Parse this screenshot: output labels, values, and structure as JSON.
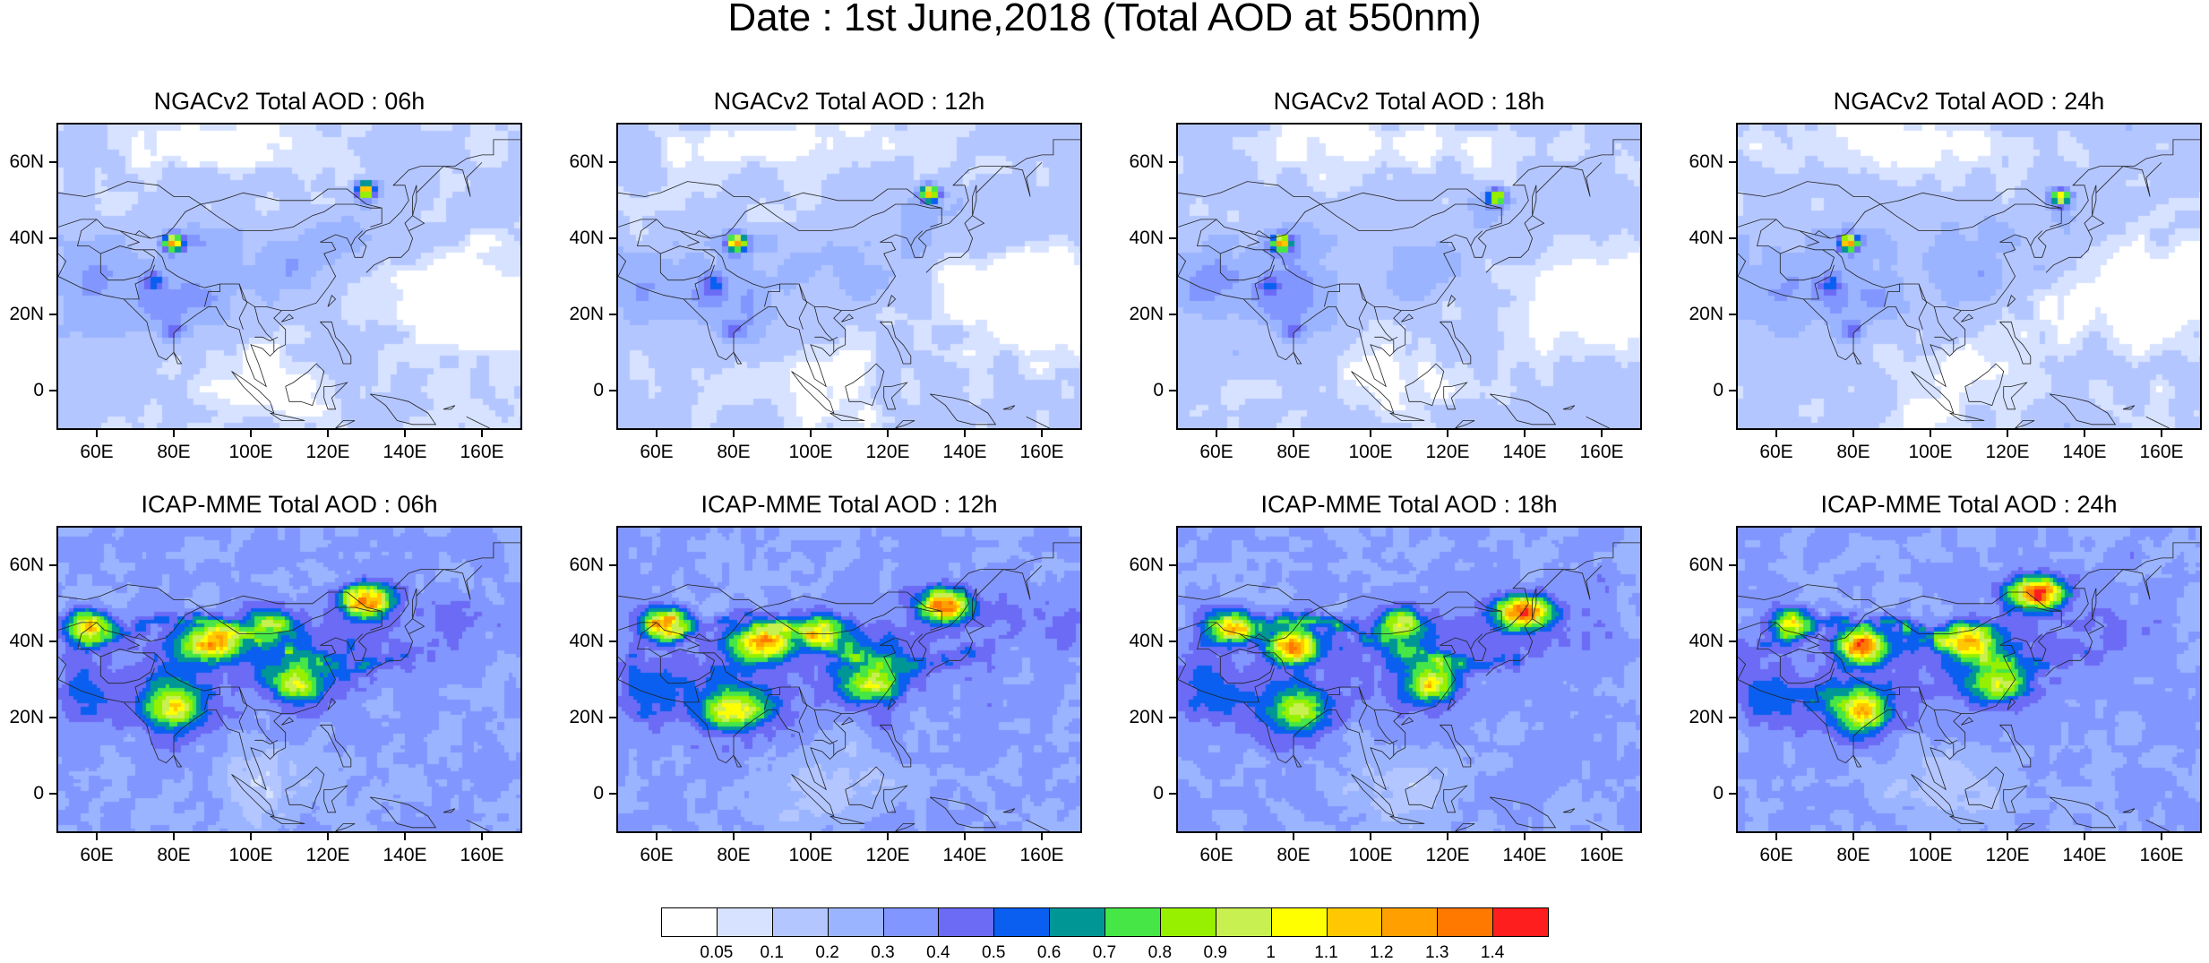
{
  "title": "Date : 1st June,2018 (Total AOD at 550nm)",
  "chart_data": [
    {
      "type": "heatmap",
      "title": "NGACv2 Total AOD : 06h",
      "model": "NGACv2",
      "hour": "06h",
      "xlabel": "",
      "ylabel": "",
      "x_ticks": [
        "60E",
        "80E",
        "100E",
        "120E",
        "140E",
        "160E"
      ],
      "y_ticks": [
        "60N",
        "40N",
        "20N",
        "0"
      ],
      "xlim": [
        50,
        170
      ],
      "ylim": [
        -10,
        70
      ],
      "hotspots": [
        {
          "lon": 80,
          "lat": 39,
          "aod": 1.3
        },
        {
          "lon": 130,
          "lat": 53,
          "aod": 1.3
        },
        {
          "lon": 75,
          "lat": 29,
          "aod": 0.6
        },
        {
          "lon": 80,
          "lat": 16,
          "aod": 0.5
        }
      ]
    },
    {
      "type": "heatmap",
      "title": "NGACv2 Total AOD : 12h",
      "model": "NGACv2",
      "hour": "12h",
      "xlabel": "",
      "ylabel": "",
      "x_ticks": [
        "60E",
        "80E",
        "100E",
        "120E",
        "140E",
        "160E"
      ],
      "y_ticks": [
        "60N",
        "40N",
        "20N",
        "0"
      ],
      "xlim": [
        50,
        170
      ],
      "ylim": [
        -10,
        70
      ],
      "hotspots": [
        {
          "lon": 81,
          "lat": 39,
          "aod": 1.3
        },
        {
          "lon": 131,
          "lat": 52,
          "aod": 1.2
        },
        {
          "lon": 75,
          "lat": 28,
          "aod": 0.6
        },
        {
          "lon": 80,
          "lat": 16,
          "aod": 0.5
        }
      ]
    },
    {
      "type": "heatmap",
      "title": "NGACv2 Total AOD : 18h",
      "model": "NGACv2",
      "hour": "18h",
      "xlabel": "",
      "ylabel": "",
      "x_ticks": [
        "60E",
        "80E",
        "100E",
        "120E",
        "140E",
        "160E"
      ],
      "y_ticks": [
        "60N",
        "40N",
        "20N",
        "0"
      ],
      "xlim": [
        50,
        170
      ],
      "ylim": [
        -10,
        70
      ],
      "hotspots": [
        {
          "lon": 77,
          "lat": 39,
          "aod": 1.3
        },
        {
          "lon": 133,
          "lat": 51,
          "aod": 1.0
        },
        {
          "lon": 74,
          "lat": 28,
          "aod": 0.6
        },
        {
          "lon": 80,
          "lat": 16,
          "aod": 0.5
        }
      ]
    },
    {
      "type": "heatmap",
      "title": "NGACv2 Total AOD : 24h",
      "model": "NGACv2",
      "hour": "24h",
      "xlabel": "",
      "ylabel": "",
      "x_ticks": [
        "60E",
        "80E",
        "100E",
        "120E",
        "140E",
        "160E"
      ],
      "y_ticks": [
        "60N",
        "40N",
        "20N",
        "0"
      ],
      "xlim": [
        50,
        170
      ],
      "ylim": [
        -10,
        70
      ],
      "hotspots": [
        {
          "lon": 79,
          "lat": 39,
          "aod": 1.3
        },
        {
          "lon": 134,
          "lat": 51,
          "aod": 1.1
        },
        {
          "lon": 74,
          "lat": 28,
          "aod": 0.6
        },
        {
          "lon": 80,
          "lat": 16,
          "aod": 0.5
        }
      ]
    },
    {
      "type": "heatmap",
      "title": "ICAP-MME Total AOD : 06h",
      "model": "ICAP-MME",
      "hour": "06h",
      "xlabel": "",
      "ylabel": "",
      "x_ticks": [
        "60E",
        "80E",
        "100E",
        "120E",
        "140E",
        "160E"
      ],
      "y_ticks": [
        "60N",
        "40N",
        "20N",
        "0"
      ],
      "xlim": [
        50,
        170
      ],
      "ylim": [
        -10,
        70
      ],
      "hotspots": [
        {
          "lon": 58,
          "lat": 44,
          "aod": 1.2
        },
        {
          "lon": 90,
          "lat": 40,
          "aod": 1.3
        },
        {
          "lon": 80,
          "lat": 23,
          "aod": 1.1
        },
        {
          "lon": 130,
          "lat": 51,
          "aod": 1.4
        },
        {
          "lon": 105,
          "lat": 45,
          "aod": 0.9
        },
        {
          "lon": 112,
          "lat": 29,
          "aod": 1.0
        }
      ]
    },
    {
      "type": "heatmap",
      "title": "ICAP-MME Total AOD : 12h",
      "model": "ICAP-MME",
      "hour": "12h",
      "xlabel": "",
      "ylabel": "",
      "x_ticks": [
        "60E",
        "80E",
        "100E",
        "120E",
        "140E",
        "160E"
      ],
      "y_ticks": [
        "60N",
        "40N",
        "20N",
        "0"
      ],
      "xlim": [
        50,
        170
      ],
      "ylim": [
        -10,
        70
      ],
      "hotspots": [
        {
          "lon": 62,
          "lat": 45,
          "aod": 1.3
        },
        {
          "lon": 88,
          "lat": 40,
          "aod": 1.3
        },
        {
          "lon": 80,
          "lat": 22,
          "aod": 1.1
        },
        {
          "lon": 135,
          "lat": 50,
          "aod": 1.4
        },
        {
          "lon": 103,
          "lat": 43,
          "aod": 1.0
        },
        {
          "lon": 116,
          "lat": 29,
          "aod": 1.0
        }
      ]
    },
    {
      "type": "heatmap",
      "title": "ICAP-MME Total AOD : 18h",
      "model": "ICAP-MME",
      "hour": "18h",
      "xlabel": "",
      "ylabel": "",
      "x_ticks": [
        "60E",
        "80E",
        "100E",
        "120E",
        "140E",
        "160E"
      ],
      "y_ticks": [
        "60N",
        "40N",
        "20N",
        "0"
      ],
      "xlim": [
        50,
        170
      ],
      "ylim": [
        -10,
        70
      ],
      "hotspots": [
        {
          "lon": 64,
          "lat": 44,
          "aod": 1.1
        },
        {
          "lon": 80,
          "lat": 39,
          "aod": 1.3
        },
        {
          "lon": 82,
          "lat": 22,
          "aod": 1.0
        },
        {
          "lon": 140,
          "lat": 48,
          "aod": 1.4
        },
        {
          "lon": 108,
          "lat": 45,
          "aod": 1.0
        },
        {
          "lon": 116,
          "lat": 29,
          "aod": 1.1
        }
      ]
    },
    {
      "type": "heatmap",
      "title": "ICAP-MME Total AOD : 24h",
      "model": "ICAP-MME",
      "hour": "24h",
      "xlabel": "",
      "ylabel": "",
      "x_ticks": [
        "60E",
        "80E",
        "100E",
        "120E",
        "140E",
        "160E"
      ],
      "y_ticks": [
        "60N",
        "40N",
        "20N",
        "0"
      ],
      "xlim": [
        50,
        170
      ],
      "ylim": [
        -10,
        70
      ],
      "hotspots": [
        {
          "lon": 64,
          "lat": 45,
          "aod": 1.0
        },
        {
          "lon": 82,
          "lat": 39,
          "aod": 1.4
        },
        {
          "lon": 83,
          "lat": 22,
          "aod": 1.2
        },
        {
          "lon": 128,
          "lat": 53,
          "aod": 1.4
        },
        {
          "lon": 110,
          "lat": 41,
          "aod": 1.2
        },
        {
          "lon": 118,
          "lat": 29,
          "aod": 1.0
        }
      ]
    }
  ],
  "colorbar": {
    "levels": [
      "0.05",
      "0.1",
      "0.2",
      "0.3",
      "0.4",
      "0.5",
      "0.6",
      "0.7",
      "0.8",
      "0.9",
      "1",
      "1.1",
      "1.2",
      "1.3",
      "1.4"
    ],
    "colors": [
      "#ffffff",
      "#d6e2ff",
      "#b4c6ff",
      "#9bb4ff",
      "#8296ff",
      "#6b6bf5",
      "#0a5ff0",
      "#009696",
      "#46e646",
      "#96f000",
      "#c8f050",
      "#ffff00",
      "#ffc800",
      "#ffa000",
      "#ff7800",
      "#ff1e1e"
    ]
  }
}
